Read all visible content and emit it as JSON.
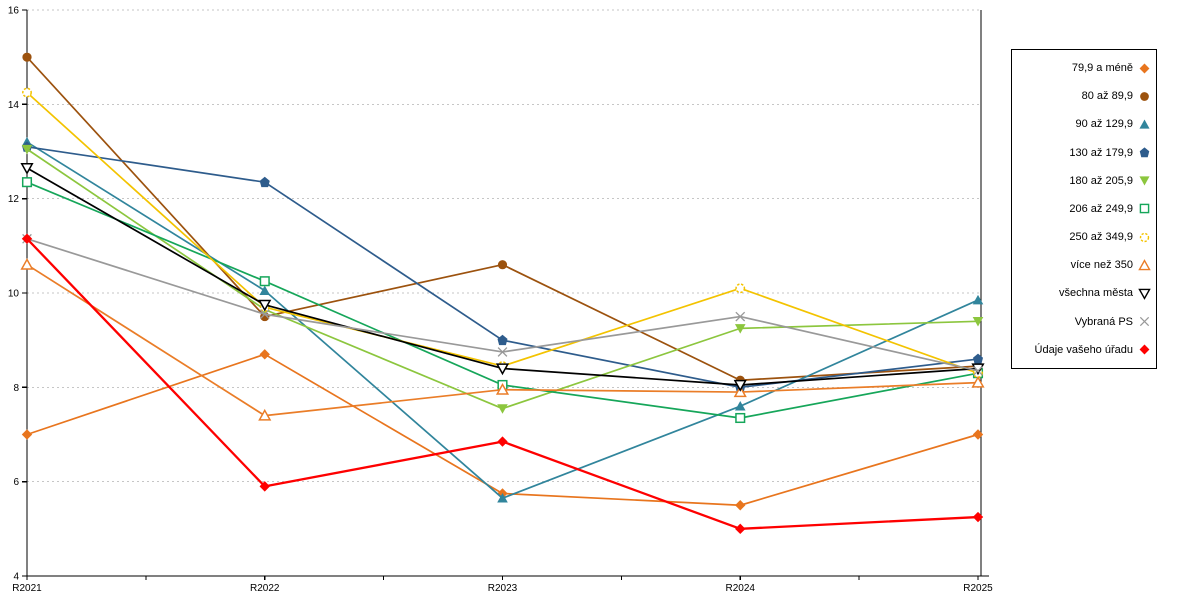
{
  "chart_data": {
    "type": "line",
    "title": "",
    "xlabel": "",
    "ylabel": "",
    "x_categories": [
      "R2021",
      "R2022",
      "R2023",
      "R2024",
      "R2025"
    ],
    "y_ticks": [
      4,
      6,
      8,
      10,
      12,
      14,
      16
    ],
    "ylim": [
      4,
      16
    ],
    "grid": "horizontal-dashed",
    "legend_position": "right",
    "background_color": "#FFFFFF",
    "grid_color": "#C6C6C6",
    "axis_color": "#000000",
    "series": [
      {
        "name": "79,9 a méně",
        "color": "#E8751E",
        "marker": "diamond",
        "fill": "solid",
        "values": [
          7.0,
          8.7,
          5.75,
          5.5,
          7.0
        ]
      },
      {
        "name": "80 až 89,9",
        "color": "#9C520E",
        "marker": "circle",
        "fill": "solid",
        "values": [
          15.0,
          9.5,
          10.6,
          8.15,
          8.45
        ]
      },
      {
        "name": "90 až 129,9",
        "color": "#31859C",
        "marker": "triangle-up",
        "fill": "solid",
        "values": [
          13.2,
          10.05,
          5.65,
          7.6,
          9.85
        ]
      },
      {
        "name": "130 až 179,9",
        "color": "#2E5C8C",
        "marker": "pentagon",
        "fill": "solid",
        "values": [
          13.1,
          12.35,
          9.0,
          8.0,
          8.6
        ]
      },
      {
        "name": "180 až 205,9",
        "color": "#8CC63E",
        "marker": "triangle-down",
        "fill": "solid",
        "values": [
          13.05,
          9.65,
          7.55,
          9.25,
          9.4
        ]
      },
      {
        "name": "206 až 249,9",
        "color": "#16A65A",
        "marker": "square",
        "fill": "open",
        "values": [
          12.35,
          10.25,
          8.05,
          7.35,
          8.3
        ]
      },
      {
        "name": "250 až 349,9",
        "color": "#F3C300",
        "marker": "circle-dashed",
        "fill": "open",
        "values": [
          14.25,
          9.7,
          8.45,
          10.1,
          8.3
        ]
      },
      {
        "name": "více než 350",
        "color": "#EA7D28",
        "marker": "triangle-up",
        "fill": "open",
        "values": [
          10.6,
          7.4,
          7.95,
          7.9,
          8.1
        ]
      },
      {
        "name": "všechna města",
        "color": "#000000",
        "marker": "triangle-down",
        "fill": "open",
        "values": [
          12.65,
          9.75,
          8.4,
          8.05,
          8.4
        ]
      },
      {
        "name": "Vybraná PS",
        "color": "#999999",
        "marker": "x-cross",
        "fill": "open",
        "values": [
          11.15,
          9.55,
          8.75,
          9.5,
          8.35
        ]
      },
      {
        "name": "Údaje vašeho úřadu",
        "color": "#FE0000",
        "marker": "diamond",
        "fill": "solid",
        "values": [
          11.15,
          5.9,
          6.85,
          5.0,
          5.25
        ]
      }
    ]
  }
}
